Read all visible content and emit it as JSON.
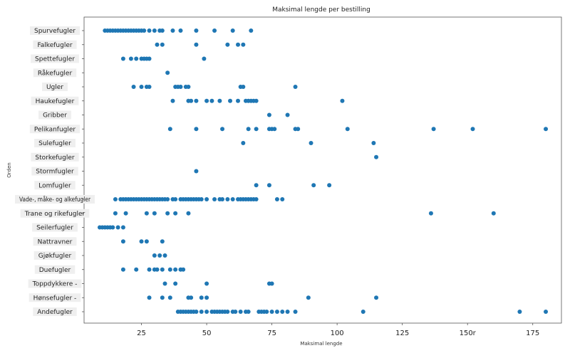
{
  "chart_data": {
    "type": "scatter",
    "title": "Maksimal lengde per bestilling",
    "xlabel": "Maksimal lengde",
    "ylabel": "Orden",
    "xlim": [
      3,
      186
    ],
    "x_ticks": [
      25,
      50,
      75,
      100,
      125,
      150,
      175
    ],
    "x_tick_labels": [
      "25",
      "50",
      "75",
      "100",
      "125",
      "150r",
      "175"
    ],
    "grid": false,
    "marker_color": "#1f77b4",
    "categories": [
      "Spurvefugler",
      "Falkefugler",
      "Spettefugler",
      "Råkefugler",
      "Ugler",
      "Haukefugler",
      "Gribber",
      "Pelikanfugler",
      "Sulefugler",
      "Storkefugler",
      "Stormfugler",
      "Lomfugler",
      "Vade-, måke- og alkefugler",
      "Trane og rikefugler",
      "Seilerfugler",
      "Nattravner",
      "Gjøkfugler",
      "Duefugler",
      "Toppdykkere -",
      "Hønsefugler -",
      "Andefugler"
    ],
    "series": [
      {
        "category": "Spurvefugler",
        "x": [
          11,
          12,
          13,
          14,
          15,
          16,
          17,
          18,
          19,
          20,
          21,
          22,
          23,
          24,
          25,
          26,
          28,
          30,
          32,
          33,
          37,
          40,
          46,
          53,
          60,
          67
        ]
      },
      {
        "category": "Falkefugler",
        "x": [
          31,
          33,
          46,
          58,
          62,
          64
        ]
      },
      {
        "category": "Spettefugler",
        "x": [
          18,
          21,
          23,
          25,
          26,
          27,
          28,
          49
        ]
      },
      {
        "category": "Råkefugler",
        "x": [
          35
        ]
      },
      {
        "category": "Ugler",
        "x": [
          22,
          25,
          27,
          28,
          38,
          39,
          40,
          42,
          43,
          63,
          64,
          84
        ]
      },
      {
        "category": "Haukefugler",
        "x": [
          37,
          43,
          44,
          46,
          50,
          52,
          55,
          59,
          62,
          65,
          66,
          67,
          68,
          69,
          102
        ]
      },
      {
        "category": "Gribber",
        "x": [
          74,
          81
        ]
      },
      {
        "category": "Pelikanfugler",
        "x": [
          36,
          46,
          56,
          66,
          69,
          74,
          75,
          76,
          84,
          85,
          104,
          137,
          152,
          180
        ]
      },
      {
        "category": "Sulefugler",
        "x": [
          64,
          90,
          114
        ]
      },
      {
        "category": "Storkefugler",
        "x": [
          115
        ]
      },
      {
        "category": "Stormfugler",
        "x": [
          46
        ]
      },
      {
        "category": "Lomfugler",
        "x": [
          69,
          74,
          91,
          97
        ]
      },
      {
        "category": "Vade-, måke- og alkefugler",
        "x": [
          15,
          17,
          18,
          19,
          20,
          21,
          22,
          23,
          24,
          25,
          26,
          27,
          28,
          29,
          30,
          31,
          32,
          33,
          34,
          35,
          37,
          38,
          40,
          41,
          42,
          43,
          44,
          45,
          46,
          47,
          48,
          50,
          53,
          55,
          56,
          58,
          60,
          62,
          63,
          64,
          65,
          66,
          67,
          68,
          69,
          77,
          79
        ]
      },
      {
        "category": "Trane og rikefugler",
        "x": [
          15,
          19,
          27,
          30,
          35,
          38,
          43,
          136,
          160
        ]
      },
      {
        "category": "Seilerfugler",
        "x": [
          9,
          10,
          11,
          12,
          13,
          14,
          16,
          18
        ]
      },
      {
        "category": "Nattravner",
        "x": [
          18,
          25,
          27,
          33
        ]
      },
      {
        "category": "Gjøkfugler",
        "x": [
          30,
          32,
          34
        ]
      },
      {
        "category": "Duefugler",
        "x": [
          18,
          23,
          28,
          30,
          31,
          33,
          36,
          38,
          40,
          41
        ]
      },
      {
        "category": "Toppdykkere -",
        "x": [
          34,
          38,
          50,
          74,
          75
        ]
      },
      {
        "category": "Hønsefugler -",
        "x": [
          28,
          33,
          36,
          43,
          44,
          48,
          50,
          89,
          115
        ]
      },
      {
        "category": "Andefugler",
        "x": [
          39,
          40,
          41,
          42,
          43,
          44,
          45,
          46,
          48,
          50,
          52,
          53,
          54,
          55,
          56,
          57,
          58,
          60,
          61,
          63,
          65,
          66,
          70,
          71,
          72,
          73,
          75,
          77,
          79,
          81,
          84,
          110,
          170,
          180
        ]
      }
    ]
  }
}
